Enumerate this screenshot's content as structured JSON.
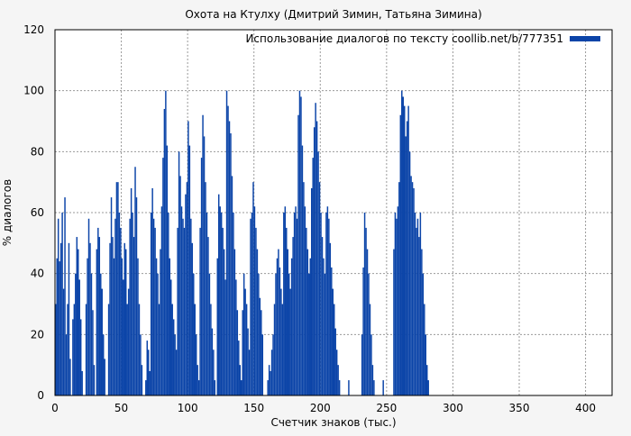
{
  "chart_data": {
    "type": "bar",
    "title": "Охота на Ктулху (Дмитрий Зимин, Татьяна Зимина)",
    "xlabel": "Счетчик знаков (тыс.)",
    "ylabel": "% диалогов",
    "xlim": [
      0,
      420
    ],
    "ylim": [
      0,
      120
    ],
    "xticks": [
      0,
      50,
      100,
      150,
      200,
      250,
      300,
      350,
      400
    ],
    "yticks": [
      0,
      20,
      40,
      60,
      80,
      100,
      120
    ],
    "grid": true,
    "legend_position": "top-right",
    "colors": {
      "bar": "#0b44a8",
      "background": "#f5f5f5",
      "plot": "#ffffff"
    },
    "series": [
      {
        "name": "Использование диалогов по тексту coollib.net/b/777351",
        "binned": true,
        "bin_width": 1,
        "x_start": 0,
        "values": [
          30,
          45,
          58,
          44,
          50,
          60,
          35,
          65,
          20,
          30,
          50,
          12,
          0,
          25,
          30,
          40,
          52,
          48,
          38,
          25,
          8,
          0,
          0,
          30,
          45,
          58,
          50,
          40,
          28,
          10,
          0,
          48,
          55,
          52,
          40,
          35,
          20,
          12,
          0,
          0,
          30,
          50,
          65,
          52,
          45,
          58,
          70,
          70,
          60,
          55,
          45,
          38,
          50,
          48,
          30,
          35,
          58,
          68,
          60,
          52,
          75,
          65,
          45,
          30,
          20,
          10,
          0,
          0,
          5,
          18,
          15,
          8,
          60,
          68,
          58,
          55,
          45,
          40,
          30,
          48,
          62,
          78,
          94,
          100,
          82,
          60,
          45,
          38,
          30,
          25,
          20,
          15,
          55,
          80,
          72,
          62,
          58,
          55,
          66,
          70,
          90,
          82,
          58,
          50,
          40,
          30,
          20,
          10,
          5,
          55,
          78,
          92,
          85,
          70,
          60,
          52,
          40,
          30,
          22,
          15,
          5,
          0,
          45,
          66,
          62,
          60,
          55,
          48,
          38,
          100,
          95,
          90,
          86,
          72,
          60,
          48,
          38,
          28,
          18,
          10,
          5,
          28,
          40,
          35,
          30,
          22,
          15,
          58,
          60,
          70,
          62,
          55,
          48,
          40,
          32,
          28,
          20,
          0,
          0,
          0,
          5,
          10,
          8,
          15,
          20,
          30,
          40,
          45,
          48,
          42,
          35,
          30,
          60,
          62,
          55,
          48,
          40,
          35,
          45,
          52,
          60,
          62,
          58,
          92,
          100,
          98,
          82,
          70,
          62,
          55,
          48,
          40,
          45,
          68,
          78,
          88,
          96,
          90,
          80,
          70,
          60,
          52,
          45,
          40,
          60,
          62,
          58,
          50,
          42,
          35,
          30,
          22,
          15,
          10,
          5,
          0,
          0,
          0,
          0,
          0,
          0,
          5,
          0,
          0,
          0,
          0,
          0,
          0,
          0,
          0,
          0,
          20,
          42,
          60,
          55,
          48,
          40,
          30,
          20,
          10,
          5,
          0,
          0,
          0,
          0,
          0,
          0,
          5,
          0,
          0,
          0,
          0,
          0,
          0,
          0,
          48,
          60,
          58,
          62,
          70,
          92,
          100,
          98,
          95,
          85,
          90,
          95,
          80,
          72,
          70,
          68,
          60,
          55,
          58,
          52,
          60,
          48,
          40,
          30,
          20,
          10,
          5,
          0,
          0,
          0,
          0,
          0,
          0,
          0,
          0,
          0,
          0,
          0,
          0,
          0,
          0,
          0,
          0,
          0,
          0,
          0,
          0,
          0,
          0,
          0,
          0,
          0,
          0,
          0,
          0,
          0,
          0,
          0,
          0,
          0,
          0,
          0,
          0,
          0,
          0,
          0,
          0,
          0,
          0,
          0,
          0,
          0,
          0,
          0,
          0,
          0,
          0,
          0,
          0,
          0,
          0,
          0,
          0,
          0,
          0,
          0,
          0,
          0,
          0,
          0,
          0,
          0,
          0,
          0,
          0,
          0,
          0,
          0,
          0,
          0,
          0,
          0,
          0,
          0,
          0,
          0,
          0,
          0,
          0,
          0,
          0,
          0,
          0,
          0,
          0,
          0,
          0,
          0,
          0,
          0,
          0,
          0,
          0,
          0,
          0,
          0,
          0,
          0,
          0,
          0,
          0,
          0,
          0,
          0,
          0,
          0,
          0,
          0,
          0,
          0,
          0,
          0,
          0,
          0,
          0,
          0,
          0,
          0,
          0,
          0,
          0,
          0,
          0,
          0,
          0
        ]
      }
    ]
  }
}
